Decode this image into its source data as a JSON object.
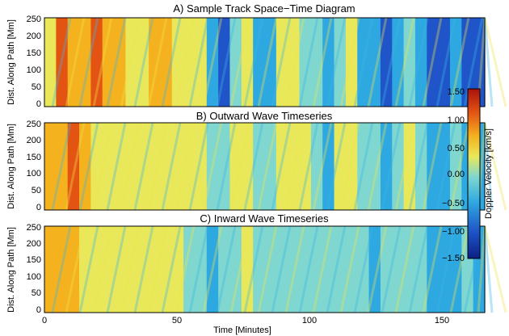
{
  "chart_data": [
    {
      "type": "heatmap",
      "title": "A) Sample Track Space−Time Diagram",
      "ylabel": "Dist. Along Path [Mm]",
      "yticks": [
        "0",
        "50",
        "100",
        "150",
        "200",
        "250"
      ],
      "xlim": [
        0,
        166
      ],
      "ylim": [
        0,
        262
      ],
      "values": [
        0.4,
        0.9,
        0.8,
        0.6,
        1.0,
        0.5,
        0.5,
        0.3,
        0.4,
        0.7,
        0.6,
        0.3,
        0.0,
        0.1,
        -0.6,
        -0.9,
        -0.3,
        0.0,
        -0.7,
        -0.5,
        0.3,
        0.2,
        -0.1,
        -0.3,
        -0.6,
        -0.3,
        0.2,
        -0.6,
        -0.8,
        -1.0,
        -0.8,
        -0.3,
        -0.6,
        -1.1,
        -1.0,
        -0.7,
        -1.0,
        -1.2
      ]
    },
    {
      "type": "heatmap",
      "title": "B) Outward Wave Timeseries",
      "ylabel": "Dist. Along Path [Mm]",
      "yticks": [
        "0",
        "50",
        "100",
        "150",
        "200",
        "250"
      ],
      "xlim": [
        0,
        166
      ],
      "ylim": [
        0,
        262
      ],
      "values": [
        0.6,
        0.8,
        0.9,
        0.5,
        0.4,
        0.3,
        0.2,
        0.1,
        0.3,
        0.4,
        0.2,
        0.1,
        0.0,
        0.2,
        -0.3,
        -0.4,
        0.0,
        0.2,
        -0.4,
        -0.2,
        0.4,
        0.3,
        0.1,
        -0.1,
        -0.5,
        0.0,
        0.4,
        -0.2,
        -0.4,
        -0.6,
        -0.3,
        0.2,
        -0.2,
        -0.5,
        -0.6,
        -0.3,
        -0.5,
        -0.8
      ]
    },
    {
      "type": "heatmap",
      "title": "C) Inward Wave Timeseries",
      "ylabel": "Dist. Along Path [Mm]",
      "xlabel": "Time [Minutes]",
      "yticks": [
        "0",
        "50",
        "100",
        "150",
        "200",
        "250"
      ],
      "xticks": [
        "0",
        "50",
        "100",
        "150"
      ],
      "xlim": [
        0,
        166
      ],
      "ylim": [
        0,
        262
      ],
      "values": [
        0.5,
        0.6,
        0.5,
        0.3,
        0.4,
        0.2,
        0.1,
        0.0,
        0.3,
        0.4,
        0.2,
        0.0,
        -0.3,
        -0.1,
        -0.5,
        -0.4,
        -0.2,
        0.0,
        -0.4,
        -0.3,
        -0.1,
        -0.2,
        -0.3,
        -0.3,
        -0.4,
        -0.3,
        -0.2,
        -0.4,
        -0.5,
        -0.4,
        -0.3,
        -0.3,
        -0.4,
        -0.5,
        -0.6,
        -0.5,
        -0.4,
        -0.5
      ]
    }
  ],
  "colorbar": {
    "label": "Doppler Velocity [km/s]",
    "ticks": [
      "1.50",
      "1.00",
      "0.50",
      "0.00",
      "−0.50",
      "−1.00",
      "−1.50"
    ],
    "range": [
      -1.5,
      1.5
    ],
    "colormap": [
      "#0b1f86",
      "#1f55c8",
      "#2ea8e0",
      "#7fd7d0",
      "#e8e85a",
      "#f4b21f",
      "#e35413",
      "#a8120e"
    ]
  }
}
